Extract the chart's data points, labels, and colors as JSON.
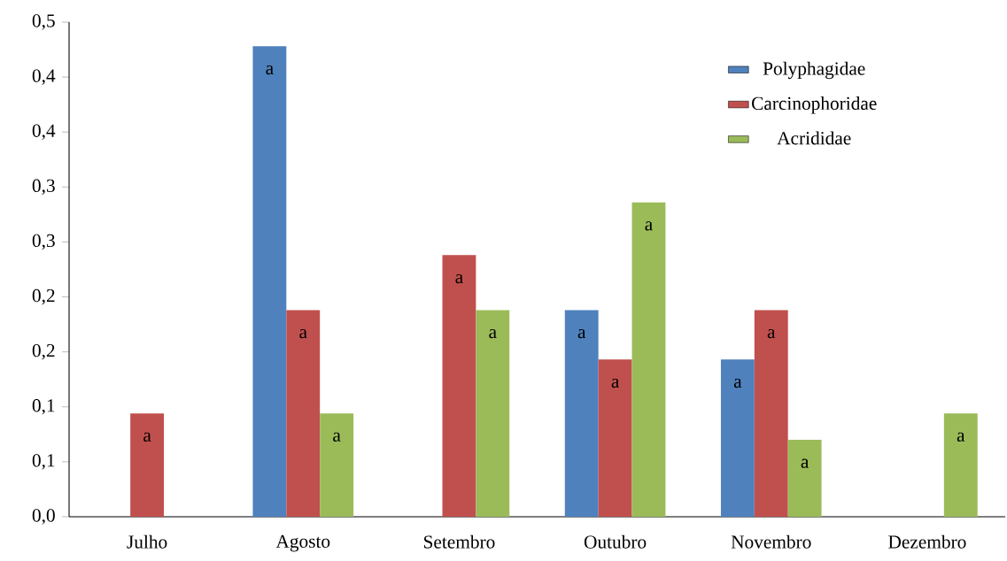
{
  "chart_data": {
    "type": "bar",
    "categories": [
      "Julho",
      "Agosto",
      "Setembro",
      "Outubro",
      "Novembro",
      "Dezembro"
    ],
    "series": [
      {
        "name": "Polyphagidae",
        "color": "#4f81bd",
        "values": [
          null,
          0.428,
          null,
          0.188,
          0.143,
          null
        ],
        "value_labels": [
          null,
          "a",
          null,
          "a",
          "a",
          null
        ]
      },
      {
        "name": "Carcinophoridae",
        "color": "#c0504d",
        "values": [
          0.094,
          0.188,
          0.238,
          0.143,
          0.188,
          null
        ],
        "value_labels": [
          "a",
          "a",
          "a",
          "a",
          "a",
          null
        ]
      },
      {
        "name": "Acrididae",
        "color": "#9bbb59",
        "values": [
          null,
          0.094,
          0.188,
          0.286,
          0.07,
          0.094
        ],
        "value_labels": [
          null,
          "a",
          "a",
          "a",
          "a",
          "a"
        ]
      }
    ],
    "ylim": [
      0,
      0.45
    ],
    "yticks": [
      {
        "value": 0,
        "label": "0,0"
      },
      {
        "value": 0.05,
        "label": "0,1"
      },
      {
        "value": 0.1,
        "label": "0,1"
      },
      {
        "value": 0.15,
        "label": "0,2"
      },
      {
        "value": 0.2,
        "label": "0,2"
      },
      {
        "value": 0.25,
        "label": "0,3"
      },
      {
        "value": 0.3,
        "label": "0,3"
      },
      {
        "value": 0.35,
        "label": "0,4"
      },
      {
        "value": 0.4,
        "label": "0,4"
      },
      {
        "value": 0.45,
        "label": "0,5"
      }
    ],
    "grid": false,
    "legend": "top right"
  }
}
